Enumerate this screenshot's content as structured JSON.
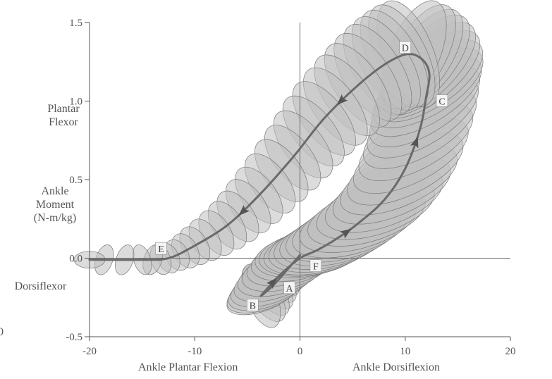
{
  "chart_data": {
    "type": "line",
    "xlim": [
      -20,
      20
    ],
    "ylim": [
      -0.5,
      1.5
    ],
    "x_ticks": [
      -20,
      -10,
      0,
      10,
      20
    ],
    "y_ticks": [
      -0.5,
      0.0,
      0.5,
      1.0,
      1.5
    ],
    "x_tick_labels": [
      "-20",
      "-10",
      "0",
      "10",
      "20"
    ],
    "y_tick_labels": [
      "-0.5",
      "0.0",
      "0.5",
      "1.0",
      "1.5"
    ],
    "x_labels": {
      "left": "Ankle Plantar Flexion",
      "right": "Ankle Dorsiflexion"
    },
    "y_labels": {
      "top": [
        "Plantar",
        "Flexor"
      ],
      "middle": [
        "Ankle",
        "Moment",
        "(N-m/kg)"
      ],
      "bottom": [
        "Dorsiflexor"
      ]
    },
    "left_edge_stray": "0",
    "grid": false,
    "zero_lines": true,
    "series": [
      {
        "values": [
          {
            "x": 0,
            "y": 0.02
          },
          {
            "x": -1.3,
            "y": -0.08
          },
          {
            "x": -2.5,
            "y": -0.17
          },
          {
            "x": -3.7,
            "y": -0.24
          },
          {
            "x": -3.2,
            "y": -0.2
          },
          {
            "x": -1.8,
            "y": -0.1
          },
          {
            "x": 0,
            "y": 0.0
          },
          {
            "x": 1.6,
            "y": 0.05
          },
          {
            "x": 3.4,
            "y": 0.12
          },
          {
            "x": 5.5,
            "y": 0.22
          },
          {
            "x": 8.0,
            "y": 0.37
          },
          {
            "x": 10.0,
            "y": 0.57
          },
          {
            "x": 11.4,
            "y": 0.82
          },
          {
            "x": 12.0,
            "y": 1.03
          },
          {
            "x": 12.3,
            "y": 1.17
          },
          {
            "x": 11.7,
            "y": 1.26
          },
          {
            "x": 10.3,
            "y": 1.3
          },
          {
            "x": 8.2,
            "y": 1.24
          },
          {
            "x": 5.5,
            "y": 1.1
          },
          {
            "x": 2.3,
            "y": 0.89
          },
          {
            "x": -0.7,
            "y": 0.64
          },
          {
            "x": -3.9,
            "y": 0.4
          },
          {
            "x": -6.9,
            "y": 0.21
          },
          {
            "x": -10.0,
            "y": 0.08
          },
          {
            "x": -12.5,
            "y": 0.0
          },
          {
            "x": -15,
            "y": -0.01
          },
          {
            "x": -20,
            "y": -0.01
          }
        ]
      }
    ],
    "arrows": [
      {
        "x": 4.5,
        "y": 0.17
      },
      {
        "x": 11.0,
        "y": 0.73
      },
      {
        "x": 4.5,
        "y": 1.0
      },
      {
        "x": -5.0,
        "y": 0.3
      },
      {
        "x": -2.7,
        "y": -0.15
      }
    ],
    "point_labels": [
      {
        "text": "A",
        "x": -1.0,
        "y": -0.19
      },
      {
        "text": "B",
        "x": -4.5,
        "y": -0.3
      },
      {
        "text": "C",
        "x": 13.5,
        "y": 1.0
      },
      {
        "text": "D",
        "x": 10.0,
        "y": 1.34
      },
      {
        "text": "E",
        "x": -13.2,
        "y": 0.06
      },
      {
        "text": "F",
        "x": 1.5,
        "y": -0.05
      }
    ],
    "band_color": "#c0c0c0",
    "curve_color": "#6a6a6a"
  }
}
